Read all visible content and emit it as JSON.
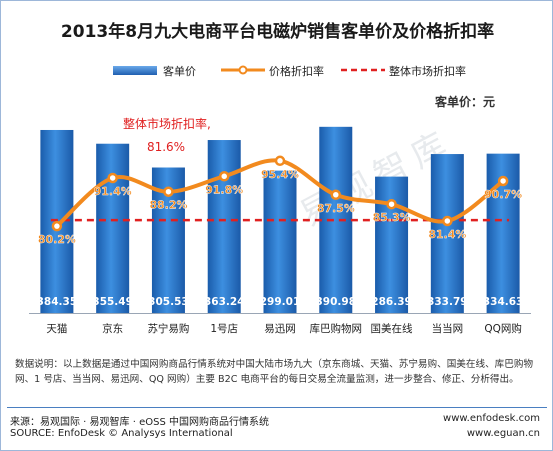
{
  "header": {
    "title": "2013年8月九大电商平台电磁炉销售客单价及价格折扣率"
  },
  "legend": {
    "bar_label": "客单价",
    "line_label": "价格折扣率",
    "ref_label": "整体市场折扣率"
  },
  "unit_label": "客单价：元",
  "watermark_text": "易观智库",
  "colors": {
    "bar": "#2e7dd4",
    "bar_dark": "#1f5fb0",
    "line": "#f28a1e",
    "ref": "#e02020",
    "value_label": "#ffffff"
  },
  "chart_data": {
    "type": "bar+line",
    "categories": [
      "天猫",
      "京东",
      "苏宁易购",
      "1号店",
      "易迅网",
      "库巴购物网",
      "国美在线",
      "当当网",
      "QQ网购"
    ],
    "series": [
      {
        "name": "客单价",
        "type": "bar",
        "values": [
          384.35,
          355.49,
          305.53,
          363.24,
          299.01,
          390.98,
          286.39,
          333.79,
          334.63
        ],
        "labels": [
          "384.35",
          "355.49",
          "305.53",
          "363.24",
          "299.01",
          "390.98",
          "286.39",
          "333.79",
          "334.63"
        ]
      },
      {
        "name": "价格折扣率",
        "type": "line",
        "values": [
          80.2,
          91.4,
          88.2,
          91.8,
          95.4,
          87.5,
          85.3,
          81.4,
          90.7
        ],
        "labels": [
          "80.2%",
          "91.4%",
          "88.2%",
          "91.8%",
          "95.4%",
          "87.5%",
          "85.3%",
          "81.4%",
          "90.7%"
        ]
      }
    ],
    "reference_line": {
      "name": "整体市场折扣率",
      "value": 81.6,
      "label": "81.6%",
      "annotation": "整体市场折扣率,"
    },
    "bar_ylim": [
      0,
      420
    ],
    "line_ylim": [
      60,
      100
    ]
  },
  "footnote": "数据说明：以上数据是通过中国网购商品行情系统对中国大陆市场九大（京东商城、天猫、苏宁易购、国美在线、库巴购物网、1 号店、当当网、易迅网、QQ 网购）主要 B2C 电商平台的每日交易全流量监测，进一步整合、修正、分析得出。",
  "source": {
    "line1": "来源：易观国际 · 易观智库 · eOSS 中国网购商品行情系统",
    "line2": "SOURCE: EnfoDesk © Analysys International",
    "url1": "www.enfodesk.com",
    "url2": "www.eguan.cn"
  }
}
